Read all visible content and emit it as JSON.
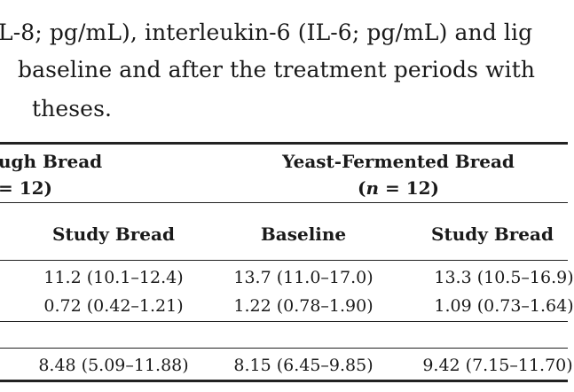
{
  "caption": {
    "line1": "L-8; pg/mL), interleukin-6 (IL-6; pg/mL) and lig",
    "line2": "baseline and after the treatment periods with",
    "line3": "theses."
  },
  "table": {
    "group_left": {
      "name": "ugh Bread",
      "n_label": "= 12)"
    },
    "group_right": {
      "name": "Yeast-Fermented Bread",
      "n_open": "(",
      "n_var": "n",
      "n_rest": " = 12)"
    },
    "subheaders": [
      "Study Bread",
      "Baseline",
      "Study Bread"
    ],
    "rows": [
      [
        "11.2 (10.1–12.4)",
        "13.7 (11.0–17.0)",
        "13.3 (10.5–16.9)"
      ],
      [
        "0.72 (0.42–1.21)",
        "1.22 (0.78–1.90)",
        "1.09 (0.73–1.64)"
      ],
      [
        "8.48 (5.09–11.88)",
        "8.15 (6.45–9.85)",
        "9.42 (7.15–11.70)"
      ]
    ]
  }
}
